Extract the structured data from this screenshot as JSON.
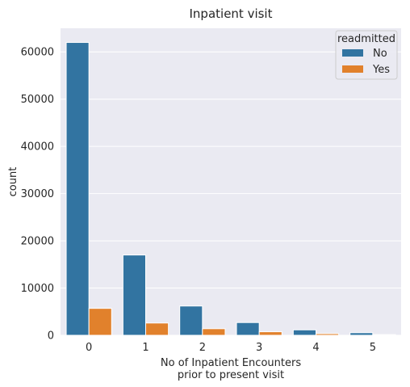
{
  "chart_data": {
    "type": "bar",
    "title": "Inpatient visit",
    "xlabel_lines": [
      "No of Inpatient Encounters",
      "prior to present visit"
    ],
    "ylabel": "count",
    "categories": [
      "0",
      "1",
      "2",
      "3",
      "4",
      "5"
    ],
    "series": [
      {
        "name": "No",
        "color": "#3274a1",
        "values": [
          62000,
          17000,
          6200,
          2700,
          1150,
          550
        ]
      },
      {
        "name": "Yes",
        "color": "#e1812c",
        "values": [
          5700,
          2600,
          1400,
          750,
          350,
          150
        ]
      }
    ],
    "ylim": [
      0,
      65000
    ],
    "yticks": [
      0,
      10000,
      20000,
      30000,
      40000,
      50000,
      60000
    ],
    "grid": true,
    "legend": {
      "title": "readmitted",
      "placement": "top-right"
    }
  }
}
